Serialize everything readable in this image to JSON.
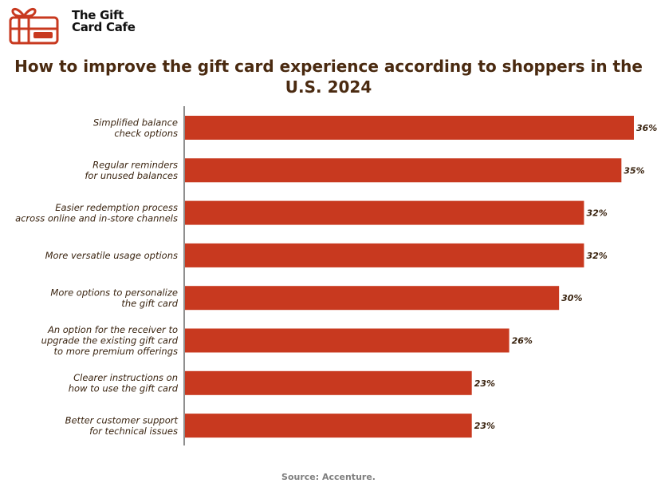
{
  "brand": {
    "name": "The Gift\nCard Cafe"
  },
  "colors": {
    "bar": "#c8391f",
    "title": "#4a2a10",
    "label": "#3a2410",
    "logo": "#c8391f"
  },
  "source": "Source: Accenture.",
  "chart_data": {
    "type": "bar",
    "orientation": "horizontal",
    "title": "How to improve the gift card experience according to shoppers in the U.S. 2024",
    "xlabel": "",
    "ylabel": "",
    "xlim": [
      0,
      36
    ],
    "grid": false,
    "categories": [
      "Simplified balance\ncheck options",
      "Regular reminders\nfor unused balances",
      "Easier redemption process\nacross online and in-store channels",
      "More versatile usage options",
      "More options to personalize\nthe gift card",
      "An option for the receiver to\nupgrade the existing gift card\nto more premium offerings",
      "Clearer instructions on\nhow to use the gift card",
      "Better customer support\nfor technical issues"
    ],
    "values": [
      36,
      35,
      32,
      32,
      30,
      26,
      23,
      23
    ],
    "value_labels": [
      "36%",
      "35%",
      "32%",
      "32%",
      "30%",
      "26%",
      "23%",
      "23%"
    ]
  }
}
